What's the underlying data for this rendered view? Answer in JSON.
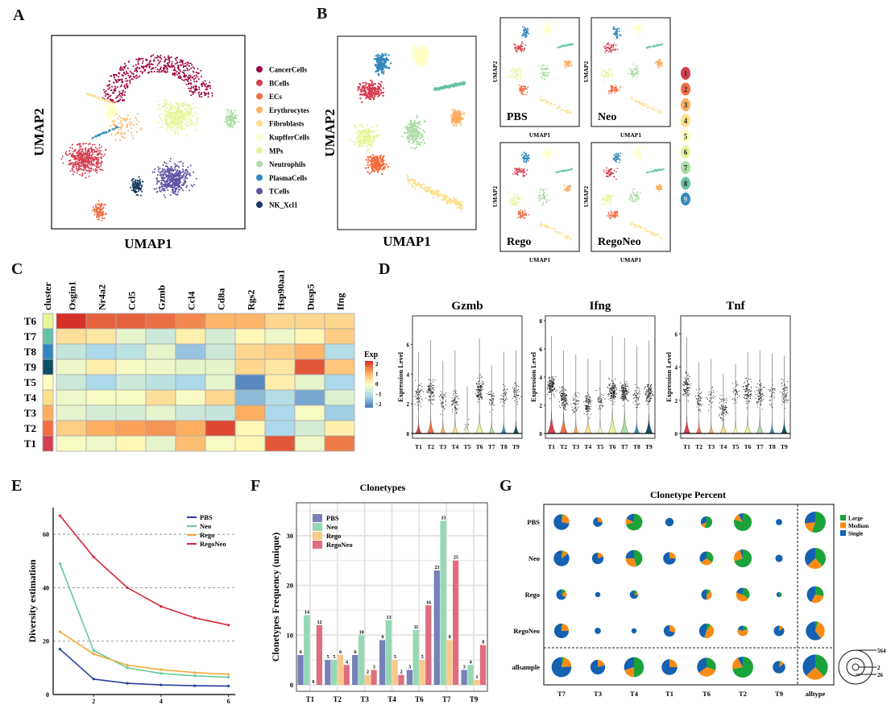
{
  "panels": {
    "A": "A",
    "B": "B",
    "C": "C",
    "D": "D",
    "E": "E",
    "F": "F",
    "G": "G"
  },
  "colors": {
    "clusters": [
      "#d53e4f",
      "#f46d43",
      "#fdae61",
      "#fee08b",
      "#ffffbf",
      "#e6f598",
      "#abdda4",
      "#66c2a5",
      "#3288bd",
      "#0c4f63"
    ],
    "celltypes": {
      "CancerCells": "#9e0142",
      "BCells": "#d53e4f",
      "ECs": "#f46d43",
      "Erythrocytes": "#fdae61",
      "Fibroblasts": "#fee08b",
      "KupfferCells": "#ffffbf",
      "MPs": "#e6f598",
      "Neutrophils": "#abdda4",
      "PlasmaCells": "#3288bd",
      "TCells": "#5e4fa2",
      "NK_Xcl1": "#1a3a5e"
    },
    "samples": {
      "PBS": "#2b3f9e",
      "Neo": "#66c99a",
      "Rego": "#f5a93a",
      "RegoNeo": "#d7283a"
    },
    "bars": {
      "PBS": "#7780b8",
      "Neo": "#95d8b3",
      "Rego": "#f9c98a",
      "RegoNeo": "#e06d7e"
    },
    "clone": {
      "Large": "#1aa33a",
      "Medium": "#f98a14",
      "Single": "#1461b0"
    }
  },
  "chart_data": [
    {
      "id": "A",
      "type": "scatter",
      "title": "",
      "xlabel": "UMAP1",
      "ylabel": "UMAP2",
      "legend": [
        "CancerCells",
        "BCells",
        "ECs",
        "Erythrocytes",
        "Fibroblasts",
        "KupfferCells",
        "MPs",
        "Neutrophils",
        "PlasmaCells",
        "TCells",
        "NK_Xcl1"
      ],
      "legend_position": "right",
      "clusters": [
        {
          "name": "CancerCells",
          "cx": 0.55,
          "cy": 0.18,
          "shape": "arc"
        },
        {
          "name": "BCells",
          "cx": 0.17,
          "cy": 0.64,
          "shape": "blob"
        },
        {
          "name": "ECs",
          "cx": 0.25,
          "cy": 0.91,
          "shape": "blob-small"
        },
        {
          "name": "Erythrocytes",
          "cx": 0.38,
          "cy": 0.47,
          "shape": "sparse"
        },
        {
          "name": "Fibroblasts",
          "cx": 0.25,
          "cy": 0.3,
          "shape": "line"
        },
        {
          "name": "KupfferCells",
          "cx": 0.31,
          "cy": 0.39,
          "shape": "blob-small"
        },
        {
          "name": "MPs",
          "cx": 0.65,
          "cy": 0.42,
          "shape": "blob"
        },
        {
          "name": "Neutrophils",
          "cx": 0.93,
          "cy": 0.43,
          "shape": "blob-small"
        },
        {
          "name": "PlasmaCells",
          "cx": 0.28,
          "cy": 0.53,
          "shape": "line"
        },
        {
          "name": "TCells",
          "cx": 0.63,
          "cy": 0.74,
          "shape": "blob"
        },
        {
          "name": "NK_Xcl1",
          "cx": 0.44,
          "cy": 0.78,
          "shape": "blob-small"
        }
      ]
    },
    {
      "id": "B",
      "type": "scatter",
      "xlabel": "UMAP1",
      "ylabel": "UMAP2",
      "legend": [
        "1",
        "2",
        "3",
        "4",
        "5",
        "6",
        "7",
        "8",
        "9"
      ],
      "legend_position": "right",
      "facets": [
        "PBS",
        "Neo",
        "Rego",
        "RegoNeo"
      ]
    },
    {
      "id": "C",
      "type": "heatmap",
      "rows": [
        "T6",
        "T7",
        "T8",
        "T9",
        "T5",
        "T4",
        "T3",
        "T2",
        "T1"
      ],
      "row_annotation_label": "cluster",
      "columns": [
        "Osgin1",
        "Nr4a2",
        "Ccl5",
        "Gzmb",
        "Ccl4",
        "Cd8a",
        "Rgs2",
        "Hsp90aa1",
        "Dusp5",
        "Ifng"
      ],
      "values": [
        [
          2.2,
          1.6,
          1.6,
          1.5,
          1.3,
          0.9,
          0.9,
          0.5,
          0.5,
          0.5
        ],
        [
          0.4,
          0.3,
          -0.3,
          -0.6,
          0.2,
          -0.5,
          0.1,
          -0.2,
          0.1,
          0.6
        ],
        [
          -0.7,
          -1.0,
          -0.8,
          -0.3,
          -1.2,
          -0.6,
          0.5,
          0.6,
          0.9,
          -0.9
        ],
        [
          -0.2,
          0.2,
          -0.1,
          -0.2,
          -0.3,
          -0.3,
          0.5,
          0.3,
          1.7,
          0.7
        ],
        [
          -0.6,
          -1.0,
          -0.6,
          -0.8,
          -1.0,
          -0.3,
          -1.8,
          0.2,
          -0.3,
          -1.0
        ],
        [
          -0.2,
          -0.1,
          -0.1,
          0.4,
          -0.1,
          0.5,
          -1.3,
          -0.9,
          -1.5,
          -0.4
        ],
        [
          -0.3,
          -0.5,
          -0.5,
          -0.3,
          -0.6,
          -0.7,
          1.0,
          -1.0,
          -0.1,
          -1.1
        ],
        [
          0.6,
          1.0,
          1.1,
          1.2,
          1.0,
          1.8,
          0.1,
          -1.0,
          -0.5,
          0.2
        ],
        [
          -0.1,
          -0.2,
          0.1,
          -0.3,
          0.8,
          -0.1,
          0.1,
          1.7,
          -0.2,
          1.4
        ]
      ],
      "legend_title": "Exp",
      "legend_ticks": [
        "2",
        "1",
        "0",
        "−1",
        "−2"
      ],
      "range": [
        -2,
        2
      ]
    },
    {
      "id": "D",
      "type": "violin",
      "ylabel": "Expression Level",
      "categories": [
        "T1",
        "T2",
        "T3",
        "T4",
        "T5",
        "T6",
        "T7",
        "T8",
        "T9"
      ],
      "subplots": [
        {
          "title": "Gzmb",
          "yticks": [
            "0",
            "2",
            "4",
            "6"
          ],
          "ylim": [
            0,
            7.6
          ],
          "max": [
            5.5,
            6.3,
            4.9,
            5.6,
            3.2,
            6.4,
            4.6,
            5.5,
            5.6
          ],
          "median": [
            2.6,
            2.8,
            2.2,
            2.1,
            0.5,
            3.0,
            2.4,
            2.5,
            2.8
          ],
          "density": [
            0.35,
            0.6,
            0.25,
            0.4,
            0.05,
            0.7,
            0.3,
            0.25,
            0.3
          ]
        },
        {
          "title": "Ifng",
          "yticks": [
            "0",
            "2",
            "4",
            "6",
            "8"
          ],
          "ylim": [
            0,
            8
          ],
          "max": [
            6.9,
            5.9,
            5.6,
            5.3,
            5.2,
            6.9,
            6.8,
            6.2,
            6.6
          ],
          "median": [
            3.4,
            2.5,
            2.2,
            2.1,
            2.3,
            3.0,
            2.9,
            2.6,
            2.9
          ],
          "density": [
            0.9,
            0.8,
            0.3,
            0.6,
            0.3,
            0.95,
            0.9,
            0.3,
            0.7
          ]
        },
        {
          "title": "Tnf",
          "yticks": [
            "0",
            "2",
            "4",
            "6"
          ],
          "ylim": [
            0,
            6.8
          ],
          "max": [
            5.8,
            4.3,
            4.5,
            3.6,
            4.2,
            4.9,
            5.0,
            4.8,
            4.7
          ],
          "median": [
            2.8,
            2.0,
            2.2,
            1.5,
            2.5,
            2.5,
            2.3,
            2.4,
            2.5
          ],
          "density": [
            0.6,
            0.3,
            0.2,
            0.5,
            0.25,
            0.55,
            0.55,
            0.2,
            0.4
          ]
        }
      ]
    },
    {
      "id": "E",
      "type": "line",
      "xlabel": "",
      "ylabel": "Diversity estimation",
      "x": [
        1,
        2,
        3,
        4,
        5,
        6
      ],
      "xticks": [
        2,
        4,
        6
      ],
      "yticks": [
        0,
        20,
        40,
        60
      ],
      "ylim": [
        0,
        70
      ],
      "xlim": [
        0.8,
        6.2
      ],
      "grid": "dashed-horizontal",
      "legend_position": "top-right",
      "series": [
        {
          "name": "PBS",
          "values": [
            17,
            5.8,
            4.2,
            3.6,
            3.3,
            3.2
          ]
        },
        {
          "name": "Neo",
          "values": [
            49,
            16.5,
            10,
            7.9,
            7,
            6.5
          ]
        },
        {
          "name": "Rego",
          "values": [
            23.5,
            15.2,
            11,
            9.3,
            8.2,
            7.6
          ]
        },
        {
          "name": "RegoNeo",
          "values": [
            67,
            51.5,
            40,
            33,
            28.7,
            26
          ]
        }
      ]
    },
    {
      "id": "F",
      "type": "bar",
      "title": "Clonetypes",
      "ylabel": "Clonetypes Frequency (unique)",
      "categories": [
        "T1",
        "T2",
        "T3",
        "T4",
        "T6",
        "T7",
        "T9"
      ],
      "yticks": [
        0,
        10,
        20,
        30
      ],
      "ylim": [
        0,
        35
      ],
      "grid": true,
      "legend_position": "top-left",
      "series": [
        {
          "name": "PBS",
          "values": [
            6,
            5,
            6,
            9,
            3,
            23,
            3
          ]
        },
        {
          "name": "Neo",
          "values": [
            14,
            5,
            10,
            13,
            11,
            33,
            4
          ]
        },
        {
          "name": "Rego",
          "values": [
            0,
            6,
            2,
            5,
            5,
            9,
            1
          ]
        },
        {
          "name": "RegoNeo",
          "values": [
            12,
            4,
            3,
            2,
            16,
            25,
            8
          ]
        }
      ]
    },
    {
      "id": "G",
      "type": "pie",
      "title": "Clonetype Percent",
      "rows": [
        "PBS",
        "Neo",
        "Rego",
        "RegoNeo",
        "allsample"
      ],
      "columns": [
        "T7",
        "T3",
        "T4",
        "T1",
        "T6",
        "T2",
        "T9",
        "alltype"
      ],
      "legend": [
        "Large",
        "Medium",
        "Single"
      ],
      "legend_position": "right",
      "size_legend": [
        "564",
        "2",
        "26"
      ],
      "cells": [
        [
          {
            "s": 0.75,
            "l": [
              0.03,
              0.25,
              0.72
            ]
          },
          {
            "s": 0.45,
            "l": [
              0,
              0.25,
              0.75
            ]
          },
          {
            "s": 0.8,
            "l": [
              0.7,
              0.12,
              0.18
            ]
          },
          {
            "s": 0.4,
            "l": [
              0,
              0,
              1
            ]
          },
          {
            "s": 0.55,
            "l": [
              0.55,
              0.13,
              0.32
            ]
          },
          {
            "s": 0.85,
            "l": [
              0.8,
              0.12,
              0.08
            ]
          },
          {
            "s": 0.3,
            "l": [
              0,
              0,
              1
            ]
          },
          {
            "s": 1.0,
            "l": [
              0.55,
              0.18,
              0.27
            ]
          }
        ],
        [
          {
            "s": 0.75,
            "l": [
              0.03,
              0.12,
              0.85
            ]
          },
          {
            "s": 0.55,
            "l": [
              0,
              0.2,
              0.8
            ]
          },
          {
            "s": 0.8,
            "l": [
              0.45,
              0.3,
              0.25
            ]
          },
          {
            "s": 0.6,
            "l": [
              0,
              0.25,
              0.75
            ]
          },
          {
            "s": 0.65,
            "l": [
              0.35,
              0.3,
              0.35
            ]
          },
          {
            "s": 0.85,
            "l": [
              0.7,
              0.25,
              0.05
            ]
          },
          {
            "s": 0.35,
            "l": [
              0,
              0,
              1
            ]
          },
          {
            "s": 1.0,
            "l": [
              0.38,
              0.25,
              0.37
            ]
          }
        ],
        [
          {
            "s": 0.5,
            "l": [
              0.15,
              0.2,
              0.65
            ]
          },
          {
            "s": 0.25,
            "l": [
              0,
              0,
              1
            ]
          },
          {
            "s": 0.4,
            "l": [
              0.15,
              0.12,
              0.73
            ]
          },
          null,
          {
            "s": 0.5,
            "l": [
              0.15,
              0.35,
              0.5
            ]
          },
          {
            "s": 0.65,
            "l": [
              0.35,
              0.45,
              0.2
            ]
          },
          {
            "s": 0.25,
            "l": [
              0.5,
              0,
              0.5
            ]
          },
          {
            "s": 0.8,
            "l": [
              0.28,
              0.3,
              0.42
            ]
          }
        ],
        [
          {
            "s": 0.7,
            "l": [
              0.02,
              0.23,
              0.75
            ]
          },
          {
            "s": 0.3,
            "l": [
              0,
              0,
              1
            ]
          },
          {
            "s": 0.25,
            "l": [
              0,
              0,
              1
            ]
          },
          {
            "s": 0.55,
            "l": [
              0,
              0.3,
              0.7
            ]
          },
          {
            "s": 0.7,
            "l": [
              0.1,
              0.45,
              0.45
            ]
          },
          {
            "s": 0.5,
            "l": [
              0.2,
              0.6,
              0.2
            ]
          },
          {
            "s": 0.5,
            "l": [
              0.03,
              0.12,
              0.85
            ]
          },
          {
            "s": 0.9,
            "l": [
              0.05,
              0.35,
              0.6
            ]
          }
        ],
        [
          {
            "s": 0.95,
            "l": [
              0.04,
              0.2,
              0.76
            ]
          },
          {
            "s": 0.7,
            "l": [
              0,
              0.2,
              0.8
            ]
          },
          {
            "s": 0.95,
            "l": [
              0.5,
              0.2,
              0.3
            ]
          },
          {
            "s": 0.75,
            "l": [
              0,
              0.25,
              0.75
            ]
          },
          {
            "s": 0.9,
            "l": [
              0.3,
              0.35,
              0.35
            ]
          },
          {
            "s": 1.0,
            "l": [
              0.72,
              0.2,
              0.08
            ]
          },
          {
            "s": 0.6,
            "l": [
              0.05,
              0.1,
              0.85
            ]
          },
          {
            "s": 1.2,
            "l": [
              0.38,
              0.25,
              0.37
            ]
          }
        ]
      ]
    }
  ]
}
